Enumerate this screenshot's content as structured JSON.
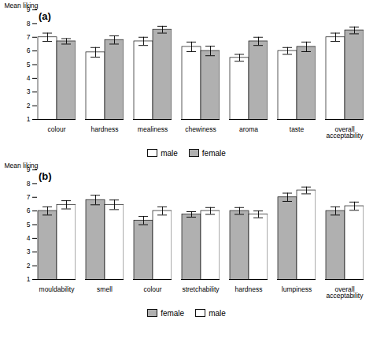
{
  "chart_data": [
    {
      "type": "bar",
      "title": "(a)",
      "ylabel": "Mean liking",
      "categories": [
        "colour",
        "hardness",
        "mealiness",
        "chewiness",
        "aroma",
        "taste",
        "overall\nacceptability"
      ],
      "series": [
        {
          "name": "male",
          "color": "white",
          "values": [
            7.0,
            5.9,
            6.7,
            6.3,
            5.5,
            6.0,
            7.0
          ],
          "errors": [
            0.3,
            0.35,
            0.3,
            0.35,
            0.25,
            0.25,
            0.3
          ]
        },
        {
          "name": "female",
          "color": "#b0b0b0",
          "values": [
            6.7,
            6.8,
            7.55,
            6.0,
            6.7,
            6.3,
            7.5
          ],
          "errors": [
            0.2,
            0.3,
            0.25,
            0.35,
            0.3,
            0.35,
            0.25
          ]
        }
      ],
      "ylim": [
        1,
        9
      ],
      "yticks": [
        1,
        2,
        3,
        4,
        5,
        6,
        7,
        8,
        9
      ],
      "legend": "bottom"
    },
    {
      "type": "bar",
      "title": "(b)",
      "ylabel": "Mean liking",
      "categories": [
        "mouldability",
        "smell",
        "colour",
        "stretchability",
        "hardness",
        "lumpiness",
        "overall\nacceptability"
      ],
      "series": [
        {
          "name": "female",
          "color": "#b0b0b0",
          "values": [
            6.0,
            6.8,
            5.3,
            5.75,
            6.0,
            7.0,
            6.0
          ],
          "errors": [
            0.3,
            0.35,
            0.3,
            0.2,
            0.25,
            0.3,
            0.3
          ]
        },
        {
          "name": "male",
          "color": "white",
          "values": [
            6.45,
            6.45,
            6.0,
            6.0,
            5.75,
            7.5,
            6.35
          ],
          "errors": [
            0.3,
            0.35,
            0.3,
            0.25,
            0.25,
            0.25,
            0.3
          ]
        }
      ],
      "ylim": [
        1,
        9
      ],
      "yticks": [
        1,
        2,
        3,
        4,
        5,
        6,
        7,
        8,
        9
      ],
      "legend": "bottom"
    }
  ]
}
